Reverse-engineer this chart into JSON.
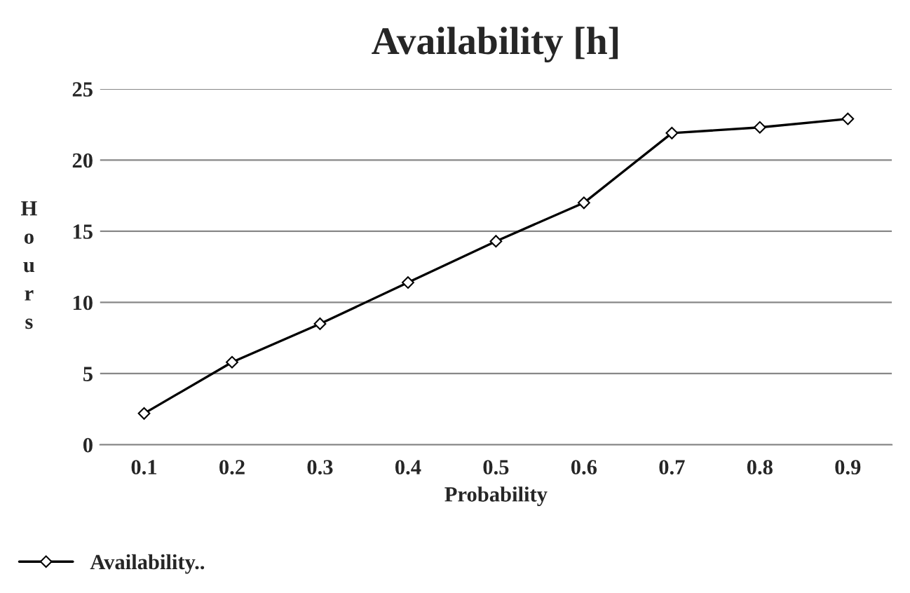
{
  "chart_data": {
    "type": "line",
    "title": "Availability [h]",
    "xlabel": "Probability",
    "ylabel": "Hours",
    "categories": [
      "0.1",
      "0.2",
      "0.3",
      "0.4",
      "0.5",
      "0.6",
      "0.7",
      "0.8",
      "0.9"
    ],
    "series": [
      {
        "name": "Availability..",
        "color": "#000000",
        "values": [
          2.2,
          5.8,
          8.5,
          11.4,
          14.3,
          17.0,
          21.9,
          22.3,
          22.9
        ]
      }
    ],
    "ylim": [
      0,
      25
    ],
    "yticks": [
      0,
      5,
      10,
      15,
      20,
      25
    ],
    "grid": "y",
    "legend": "bottom left",
    "marker": "diamond",
    "line_style": "solid"
  }
}
